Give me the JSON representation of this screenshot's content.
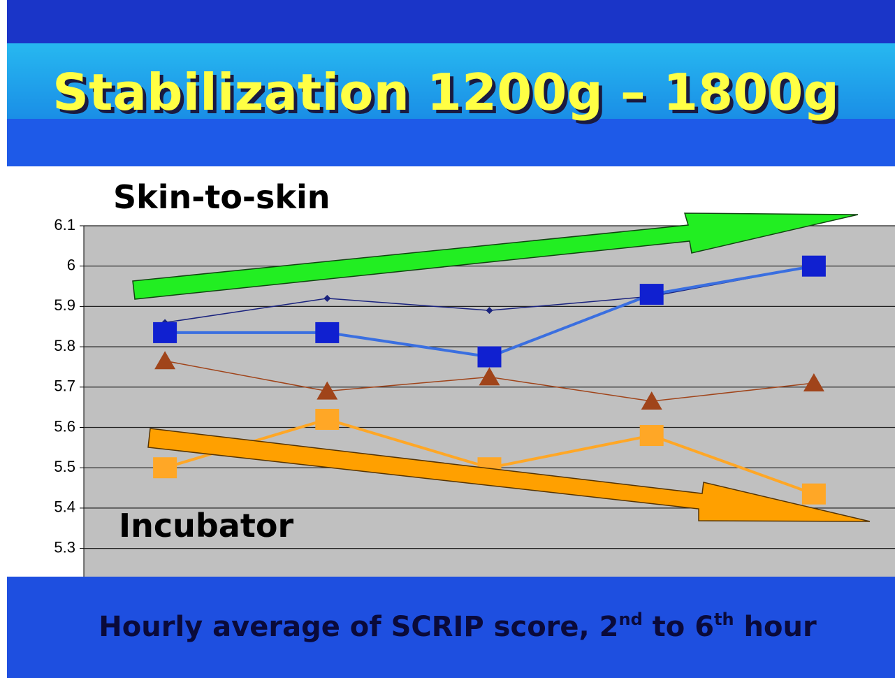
{
  "chart_data": {
    "type": "line",
    "title": "Stabilization 1200g – 1800g",
    "subtitle_parts": [
      "Hourly average of SCRIP score, 2",
      "nd",
      " to 6",
      "th",
      " hour"
    ],
    "annotations": [
      "Skin-to-skin",
      "Incubator"
    ],
    "categories": [
      null,
      null,
      null,
      null,
      null
    ],
    "series": [
      {
        "color": "#1a237e",
        "marker": "diamond",
        "width": 1.5,
        "values": [
          5.86,
          5.92,
          5.89,
          5.925,
          6.0
        ]
      },
      {
        "color": "#3a6fe0",
        "marker": "square",
        "markercolor": "#1020d0",
        "width": 4,
        "values": [
          5.835,
          5.835,
          5.775,
          5.93,
          6.0
        ]
      },
      {
        "color": "#a0441a",
        "marker": "triangle",
        "width": 1.5,
        "values": [
          5.765,
          5.69,
          5.725,
          5.665,
          5.71
        ]
      },
      {
        "color": "#ffa726",
        "marker": "square",
        "markercolor": "#ffa726",
        "width": 4,
        "values": [
          5.5,
          5.62,
          5.5,
          5.58,
          5.435
        ]
      }
    ],
    "ylim": [
      5.23,
      6.1
    ],
    "yticks": [
      5.3,
      5.4,
      5.5,
      5.6,
      5.7,
      5.8,
      5.9,
      6,
      6.1
    ],
    "grid": true
  }
}
